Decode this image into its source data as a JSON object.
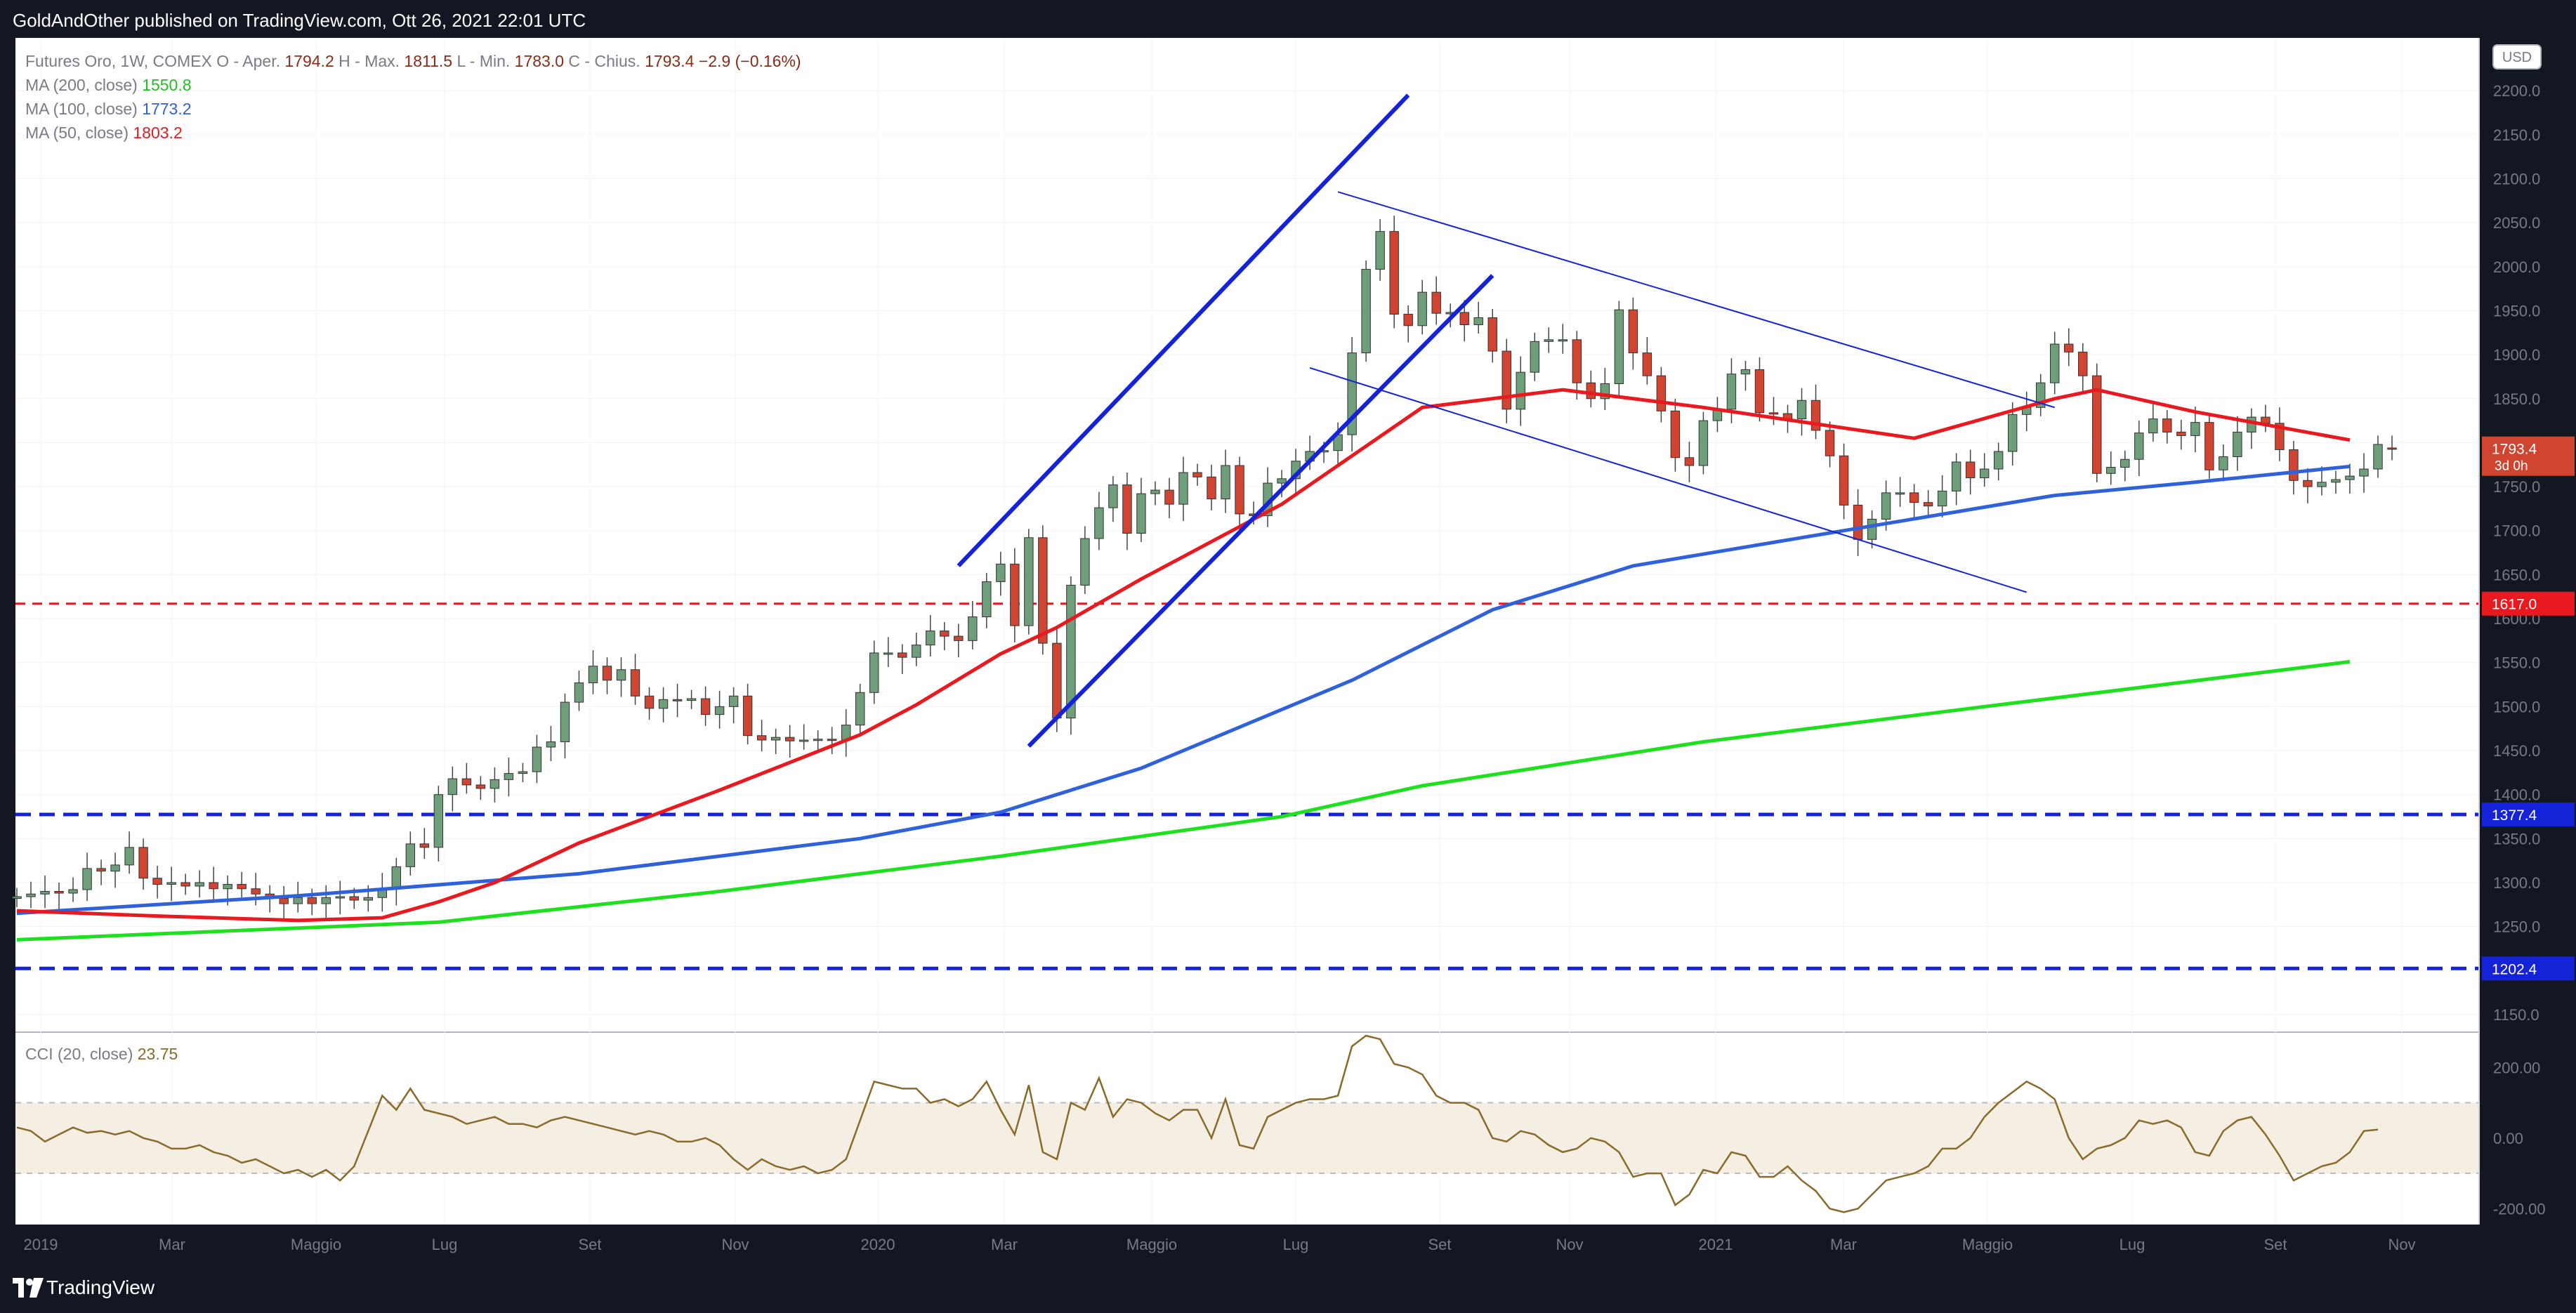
{
  "header": {
    "published": "GoldAndOther published on TradingView.com, Ott 26, 2021 22:01 UTC"
  },
  "footer": {
    "brand": "TradingView"
  },
  "legend": {
    "symbol": "Futures Oro, 1W, COMEX",
    "o_label": "O - Aper.",
    "o_value": "1794.2",
    "h_label": "H - Max.",
    "h_value": "1811.5",
    "l_label": "L - Min.",
    "l_value": "1783.0",
    "c_label": "C - Chius.",
    "c_value": "1793.4",
    "change": "−2.9 (−0.16%)",
    "ma200_label": "MA (200, close)",
    "ma200_value": "1550.8",
    "ma100_label": "MA (100, close)",
    "ma100_value": "1773.2",
    "ma50_label": "MA (50, close)",
    "ma50_value": "1803.2"
  },
  "cci_legend": {
    "label": "CCI (20, close)",
    "value": "23.75"
  },
  "colors": {
    "background": "#131722",
    "up": "#6e9e7a",
    "down": "#d04532",
    "ma200": "#1fe01f",
    "ma100": "#2f62d9",
    "ma50": "#e8191f",
    "trendline": "#1422d8",
    "hline_red": "#e8191f",
    "hline_blue": "#1422d8",
    "cci_line": "#8a6a2a",
    "cci_band": "#f5efe3"
  },
  "chart_data": [
    {
      "type": "candlestick",
      "title": "Futures Oro, 1W, COMEX",
      "x_labels": [
        "2019",
        "Mar",
        "Maggio",
        "Lug",
        "Set",
        "Nov",
        "2020",
        "Mar",
        "Maggio",
        "Lug",
        "Set",
        "Nov",
        "2021",
        "Mar",
        "Maggio",
        "Lug",
        "Set",
        "Nov"
      ],
      "y_ticks": [
        1150,
        1200,
        1250,
        1300,
        1350,
        1400,
        1450,
        1500,
        1550,
        1600,
        1650,
        1700,
        1750,
        1800,
        1850,
        1900,
        1950,
        2000,
        2050,
        2100,
        2150,
        2200
      ],
      "ylim": [
        1130,
        2260
      ],
      "currency": "USD",
      "current_price": {
        "value": "1793.4",
        "countdown": "3d 0h"
      },
      "price_labels": [
        "1617.0",
        "1377.4",
        "1202.4"
      ],
      "horizontal_lines": [
        {
          "price": 1617.0,
          "style": "dashed",
          "color": "red"
        },
        {
          "price": 1377.4,
          "style": "dashed",
          "color": "blue"
        },
        {
          "price": 1202.4,
          "style": "dashed",
          "color": "blue"
        }
      ],
      "close": [
        1284,
        1287,
        1290,
        1288,
        1292,
        1316,
        1313,
        1320,
        1340,
        1305,
        1298,
        1300,
        1296,
        1300,
        1293,
        1298,
        1293,
        1287,
        1282,
        1276,
        1283,
        1276,
        1283,
        1284,
        1280,
        1283,
        1293,
        1318,
        1344,
        1340,
        1400,
        1418,
        1411,
        1407,
        1417,
        1424,
        1426,
        1454,
        1460,
        1505,
        1527,
        1546,
        1530,
        1542,
        1512,
        1498,
        1508,
        1507,
        1509,
        1491,
        1500,
        1512,
        1467,
        1462,
        1465,
        1461,
        1462,
        1463,
        1462,
        1479,
        1516,
        1561,
        1561,
        1556,
        1570,
        1586,
        1580,
        1575,
        1602,
        1642,
        1662,
        1592,
        1692,
        1572,
        1487,
        1638,
        1691,
        1726,
        1752,
        1697,
        1742,
        1746,
        1730,
        1766,
        1761,
        1736,
        1774,
        1719,
        1717,
        1754,
        1759,
        1779,
        1790,
        1791,
        1809,
        1902,
        1997,
        2040,
        1946,
        1933,
        1971,
        1947,
        1948,
        1934,
        1942,
        1904,
        1838,
        1880,
        1915,
        1917,
        1917,
        1868,
        1850,
        1867,
        1951,
        1902,
        1876,
        1836,
        1783,
        1774,
        1825,
        1838,
        1878,
        1883,
        1834,
        1833,
        1827,
        1848,
        1814,
        1785,
        1729,
        1690,
        1713,
        1743,
        1743,
        1732,
        1728,
        1745,
        1778,
        1760,
        1770,
        1790,
        1832,
        1840,
        1868,
        1912,
        1903,
        1876,
        1765,
        1772,
        1781,
        1811,
        1827,
        1812,
        1808,
        1823,
        1769,
        1784,
        1812,
        1829,
        1822,
        1792,
        1757,
        1750,
        1755,
        1758,
        1762,
        1770,
        1798,
        1793
      ],
      "open": [
        1282,
        1284,
        1287,
        1290,
        1288,
        1292,
        1316,
        1313,
        1320,
        1340,
        1305,
        1298,
        1300,
        1296,
        1300,
        1293,
        1298,
        1293,
        1287,
        1282,
        1276,
        1283,
        1276,
        1283,
        1284,
        1280,
        1283,
        1293,
        1318,
        1344,
        1340,
        1400,
        1418,
        1411,
        1407,
        1417,
        1424,
        1426,
        1454,
        1460,
        1505,
        1527,
        1546,
        1530,
        1542,
        1512,
        1498,
        1508,
        1507,
        1509,
        1491,
        1500,
        1512,
        1467,
        1462,
        1465,
        1461,
        1462,
        1463,
        1462,
        1479,
        1516,
        1561,
        1561,
        1556,
        1570,
        1586,
        1580,
        1575,
        1602,
        1642,
        1662,
        1592,
        1692,
        1572,
        1487,
        1638,
        1691,
        1726,
        1752,
        1697,
        1742,
        1746,
        1730,
        1766,
        1761,
        1736,
        1774,
        1719,
        1717,
        1754,
        1759,
        1779,
        1790,
        1791,
        1809,
        1902,
        1997,
        2040,
        1946,
        1933,
        1971,
        1947,
        1948,
        1934,
        1942,
        1904,
        1838,
        1880,
        1915,
        1917,
        1917,
        1868,
        1850,
        1867,
        1951,
        1902,
        1876,
        1836,
        1783,
        1774,
        1825,
        1838,
        1878,
        1883,
        1834,
        1833,
        1827,
        1848,
        1814,
        1785,
        1729,
        1690,
        1713,
        1743,
        1743,
        1732,
        1728,
        1745,
        1778,
        1760,
        1770,
        1790,
        1832,
        1840,
        1868,
        1912,
        1903,
        1876,
        1765,
        1772,
        1781,
        1811,
        1827,
        1812,
        1808,
        1823,
        1769,
        1784,
        1812,
        1829,
        1822,
        1792,
        1757,
        1750,
        1755,
        1758,
        1762,
        1770,
        1794
      ],
      "ma50": [
        {
          "i": 0,
          "v": 1268
        },
        {
          "i": 10,
          "v": 1262
        },
        {
          "i": 20,
          "v": 1257
        },
        {
          "i": 26,
          "v": 1260
        },
        {
          "i": 30,
          "v": 1278
        },
        {
          "i": 34,
          "v": 1300
        },
        {
          "i": 40,
          "v": 1345
        },
        {
          "i": 50,
          "v": 1405
        },
        {
          "i": 60,
          "v": 1468
        },
        {
          "i": 64,
          "v": 1502
        },
        {
          "i": 70,
          "v": 1560
        },
        {
          "i": 74,
          "v": 1590
        },
        {
          "i": 80,
          "v": 1645
        },
        {
          "i": 90,
          "v": 1730
        },
        {
          "i": 100,
          "v": 1840
        },
        {
          "i": 110,
          "v": 1860
        },
        {
          "i": 120,
          "v": 1840
        },
        {
          "i": 135,
          "v": 1805
        },
        {
          "i": 145,
          "v": 1850
        },
        {
          "i": 148,
          "v": 1860
        },
        {
          "i": 155,
          "v": 1835
        },
        {
          "i": 166,
          "v": 1803
        }
      ],
      "ma100": [
        {
          "i": 0,
          "v": 1265
        },
        {
          "i": 20,
          "v": 1285
        },
        {
          "i": 40,
          "v": 1310
        },
        {
          "i": 60,
          "v": 1350
        },
        {
          "i": 70,
          "v": 1380
        },
        {
          "i": 80,
          "v": 1430
        },
        {
          "i": 95,
          "v": 1530
        },
        {
          "i": 105,
          "v": 1610
        },
        {
          "i": 115,
          "v": 1660
        },
        {
          "i": 130,
          "v": 1700
        },
        {
          "i": 145,
          "v": 1740
        },
        {
          "i": 155,
          "v": 1755
        },
        {
          "i": 166,
          "v": 1773
        }
      ],
      "ma200": [
        {
          "i": 0,
          "v": 1235
        },
        {
          "i": 30,
          "v": 1255
        },
        {
          "i": 50,
          "v": 1290
        },
        {
          "i": 70,
          "v": 1330
        },
        {
          "i": 90,
          "v": 1375
        },
        {
          "i": 100,
          "v": 1410
        },
        {
          "i": 120,
          "v": 1460
        },
        {
          "i": 140,
          "v": 1500
        },
        {
          "i": 166,
          "v": 1551
        }
      ],
      "trendlines": [
        {
          "i1": 67,
          "v1": 1660,
          "i2": 99,
          "v2": 2195,
          "bold": true
        },
        {
          "i1": 72,
          "v1": 1455,
          "i2": 105,
          "v2": 1990,
          "bold": true
        },
        {
          "i1": 94,
          "v1": 2085,
          "i2": 145,
          "v2": 1840,
          "bold": false
        },
        {
          "i1": 92,
          "v1": 1885,
          "i2": 143,
          "v2": 1630,
          "bold": false
        }
      ]
    },
    {
      "type": "line",
      "title": "CCI (20, close)",
      "y_ticks": [
        -200,
        0,
        200
      ],
      "ylim": [
        -245,
        300
      ],
      "band": [
        -100,
        100
      ],
      "values": [
        30,
        20,
        -10,
        10,
        30,
        15,
        20,
        10,
        20,
        0,
        -10,
        -30,
        -30,
        -20,
        -40,
        -50,
        -70,
        -60,
        -80,
        -100,
        -90,
        -110,
        -90,
        -120,
        -80,
        20,
        120,
        80,
        140,
        80,
        70,
        60,
        40,
        50,
        60,
        40,
        40,
        30,
        50,
        60,
        50,
        40,
        30,
        20,
        10,
        20,
        10,
        -10,
        -10,
        0,
        -20,
        -60,
        -90,
        -60,
        -80,
        -90,
        -80,
        -100,
        -90,
        -60,
        50,
        160,
        150,
        140,
        140,
        100,
        110,
        90,
        110,
        160,
        80,
        10,
        150,
        -40,
        -60,
        100,
        80,
        170,
        60,
        110,
        100,
        70,
        50,
        80,
        80,
        0,
        110,
        -20,
        -30,
        60,
        80,
        100,
        110,
        110,
        120,
        260,
        290,
        280,
        210,
        200,
        180,
        120,
        100,
        100,
        80,
        0,
        -10,
        20,
        10,
        -20,
        -40,
        -30,
        0,
        -10,
        -40,
        -110,
        -100,
        -100,
        -190,
        -160,
        -90,
        -100,
        -40,
        -50,
        -110,
        -110,
        -80,
        -120,
        -150,
        -200,
        -210,
        -200,
        -160,
        -120,
        -110,
        -100,
        -80,
        -30,
        -30,
        0,
        60,
        100,
        130,
        160,
        140,
        110,
        0,
        -60,
        -30,
        -20,
        0,
        50,
        40,
        50,
        30,
        -40,
        -50,
        20,
        50,
        60,
        10,
        -50,
        -120,
        -100,
        -80,
        -70,
        -40,
        20,
        24
      ]
    }
  ]
}
